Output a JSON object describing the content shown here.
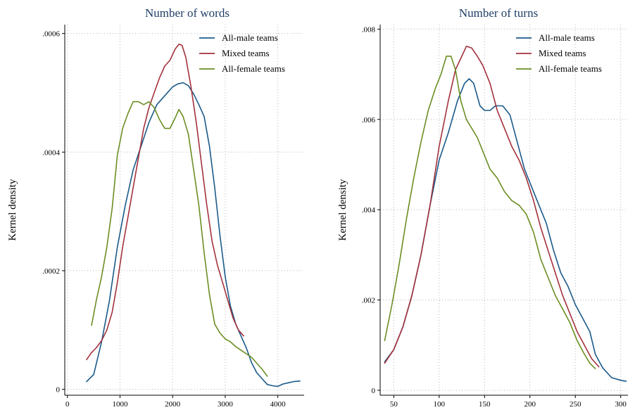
{
  "chart_data": [
    {
      "type": "line",
      "title": "Number of words",
      "xlabel": "",
      "ylabel": "Kernel density",
      "xlim": [
        -50,
        4500
      ],
      "ylim": [
        -1e-05,
        0.000615
      ],
      "x_ticks": [
        0,
        1000,
        2000,
        3000,
        4000
      ],
      "x_tick_labels": [
        "0",
        "1000",
        "2000",
        "3000",
        "4000"
      ],
      "y_ticks": [
        0,
        0.0002,
        0.0004,
        0.0006
      ],
      "y_tick_labels": [
        "0",
        ".0002",
        ".0004",
        ".0006"
      ],
      "grid": true,
      "legend_position": "top-right",
      "series": [
        {
          "name": "All-male teams",
          "color": "#1b5a8a",
          "points": [
            [
              365,
              1.3e-05
            ],
            [
              500,
              2.5e-05
            ],
            [
              650,
              8e-05
            ],
            [
              800,
              0.00015
            ],
            [
              950,
              0.00024
            ],
            [
              1100,
              0.00031
            ],
            [
              1250,
              0.00037
            ],
            [
              1400,
              0.00041
            ],
            [
              1550,
              0.00045
            ],
            [
              1700,
              0.00048
            ],
            [
              1850,
              0.000495
            ],
            [
              2000,
              0.00051
            ],
            [
              2100,
              0.000515
            ],
            [
              2200,
              0.000517
            ],
            [
              2300,
              0.000512
            ],
            [
              2400,
              0.000498
            ],
            [
              2500,
              0.00048
            ],
            [
              2600,
              0.00046
            ],
            [
              2700,
              0.00041
            ],
            [
              2800,
              0.00034
            ],
            [
              2900,
              0.00026
            ],
            [
              3000,
              0.00019
            ],
            [
              3100,
              0.00014
            ],
            [
              3200,
              0.00011
            ],
            [
              3300,
              9e-05
            ],
            [
              3400,
              7e-05
            ],
            [
              3500,
              4.5e-05
            ],
            [
              3600,
              2.8e-05
            ],
            [
              3700,
              1.8e-05
            ],
            [
              3800,
              8e-06
            ],
            [
              3900,
              6e-06
            ],
            [
              4000,
              5e-06
            ],
            [
              4100,
              9e-06
            ],
            [
              4200,
              1.1e-05
            ],
            [
              4300,
              1.3e-05
            ],
            [
              4420,
              1.4e-05
            ]
          ]
        },
        {
          "name": "Mixed teams",
          "color": "#a3313c",
          "points": [
            [
              365,
              5e-05
            ],
            [
              450,
              6.1e-05
            ],
            [
              550,
              7e-05
            ],
            [
              650,
              8.2e-05
            ],
            [
              750,
              0.0001
            ],
            [
              850,
              0.00013
            ],
            [
              950,
              0.00018
            ],
            [
              1050,
              0.00024
            ],
            [
              1150,
              0.00029
            ],
            [
              1250,
              0.00034
            ],
            [
              1350,
              0.00039
            ],
            [
              1450,
              0.00044
            ],
            [
              1550,
              0.000475
            ],
            [
              1650,
              0.0005
            ],
            [
              1750,
              0.000525
            ],
            [
              1850,
              0.000545
            ],
            [
              1950,
              0.000555
            ],
            [
              2050,
              0.000574
            ],
            [
              2120,
              0.000582
            ],
            [
              2180,
              0.00058
            ],
            [
              2250,
              0.00056
            ],
            [
              2350,
              0.00051
            ],
            [
              2450,
              0.00045
            ],
            [
              2550,
              0.00038
            ],
            [
              2650,
              0.00031
            ],
            [
              2750,
              0.00025
            ],
            [
              2850,
              0.00021
            ],
            [
              2950,
              0.00018
            ],
            [
              3050,
              0.00015
            ],
            [
              3150,
              0.00012
            ],
            [
              3250,
              0.0001
            ],
            [
              3350,
              9e-05
            ]
          ]
        },
        {
          "name": "All-female teams",
          "color": "#6b8e23",
          "points": [
            [
              460,
              0.000108
            ],
            [
              550,
              0.00015
            ],
            [
              650,
              0.00019
            ],
            [
              750,
              0.00024
            ],
            [
              850,
              0.000305
            ],
            [
              950,
              0.000395
            ],
            [
              1050,
              0.00044
            ],
            [
              1150,
              0.000465
            ],
            [
              1250,
              0.000485
            ],
            [
              1350,
              0.000485
            ],
            [
              1450,
              0.00048
            ],
            [
              1550,
              0.000485
            ],
            [
              1650,
              0.000475
            ],
            [
              1750,
              0.000455
            ],
            [
              1850,
              0.00044
            ],
            [
              1950,
              0.00044
            ],
            [
              2050,
              0.000458
            ],
            [
              2120,
              0.000472
            ],
            [
              2200,
              0.00046
            ],
            [
              2300,
              0.00043
            ],
            [
              2400,
              0.00037
            ],
            [
              2500,
              0.00031
            ],
            [
              2600,
              0.00023
            ],
            [
              2700,
              0.00016
            ],
            [
              2800,
              0.00011
            ],
            [
              2900,
              9.5e-05
            ],
            [
              3000,
              8.5e-05
            ],
            [
              3100,
              8e-05
            ],
            [
              3200,
              7.2e-05
            ],
            [
              3300,
              6.6e-05
            ],
            [
              3400,
              6e-05
            ],
            [
              3500,
              5.4e-05
            ],
            [
              3600,
              4.4e-05
            ],
            [
              3700,
              3.4e-05
            ],
            [
              3800,
              2.2e-05
            ]
          ]
        }
      ]
    },
    {
      "type": "line",
      "title": "Number of turns",
      "xlabel": "",
      "ylabel": "Kernel density",
      "xlim": [
        35,
        308
      ],
      "ylim": [
        -0.00011,
        0.0081
      ],
      "x_ticks": [
        50,
        100,
        150,
        200,
        250,
        300
      ],
      "x_tick_labels": [
        "50",
        "100",
        "150",
        "200",
        "250",
        "300"
      ],
      "y_ticks": [
        0,
        0.002,
        0.004,
        0.006,
        0.008
      ],
      "y_tick_labels": [
        "0",
        ".002",
        ".004",
        ".006",
        ".008"
      ],
      "grid": true,
      "legend_position": "top-right",
      "series": [
        {
          "name": "All-male teams",
          "color": "#1b5a8a",
          "points": [
            [
              40,
              0.00063
            ],
            [
              50,
              0.0009
            ],
            [
              60,
              0.0014
            ],
            [
              70,
              0.0021
            ],
            [
              80,
              0.003
            ],
            [
              90,
              0.0041
            ],
            [
              100,
              0.0051
            ],
            [
              110,
              0.0057
            ],
            [
              120,
              0.0064
            ],
            [
              128,
              0.0068
            ],
            [
              133,
              0.0069
            ],
            [
              138,
              0.0068
            ],
            [
              145,
              0.0063
            ],
            [
              150,
              0.0062
            ],
            [
              156,
              0.0062
            ],
            [
              162,
              0.0063
            ],
            [
              170,
              0.0063
            ],
            [
              178,
              0.0061
            ],
            [
              186,
              0.0055
            ],
            [
              194,
              0.0049
            ],
            [
              202,
              0.0045
            ],
            [
              210,
              0.0041
            ],
            [
              218,
              0.0037
            ],
            [
              226,
              0.0031
            ],
            [
              234,
              0.0026
            ],
            [
              242,
              0.0023
            ],
            [
              250,
              0.0019
            ],
            [
              258,
              0.0016
            ],
            [
              266,
              0.0013
            ],
            [
              272,
              0.0008
            ],
            [
              280,
              0.0005
            ],
            [
              290,
              0.00028
            ],
            [
              300,
              0.00022
            ],
            [
              306,
              0.0002
            ]
          ]
        },
        {
          "name": "Mixed teams",
          "color": "#a3313c",
          "points": [
            [
              40,
              0.0006
            ],
            [
              50,
              0.0009
            ],
            [
              60,
              0.0014
            ],
            [
              70,
              0.0021
            ],
            [
              80,
              0.003
            ],
            [
              90,
              0.0041
            ],
            [
              100,
              0.0054
            ],
            [
              110,
              0.0064
            ],
            [
              118,
              0.0071
            ],
            [
              125,
              0.0074
            ],
            [
              130,
              0.00762
            ],
            [
              136,
              0.00758
            ],
            [
              142,
              0.0074
            ],
            [
              148,
              0.0072
            ],
            [
              156,
              0.0068
            ],
            [
              164,
              0.0062
            ],
            [
              172,
              0.0058
            ],
            [
              180,
              0.0054
            ],
            [
              188,
              0.0051
            ],
            [
              196,
              0.0047
            ],
            [
              204,
              0.0042
            ],
            [
              212,
              0.0036
            ],
            [
              220,
              0.0031
            ],
            [
              228,
              0.0026
            ],
            [
              236,
              0.0021
            ],
            [
              244,
              0.0017
            ],
            [
              252,
              0.0013
            ],
            [
              260,
              0.001
            ],
            [
              268,
              0.0007
            ],
            [
              276,
              0.00052
            ]
          ]
        },
        {
          "name": "All-female teams",
          "color": "#6b8e23",
          "points": [
            [
              40,
              0.0011
            ],
            [
              48,
              0.0019
            ],
            [
              56,
              0.0028
            ],
            [
              64,
              0.0038
            ],
            [
              72,
              0.0047
            ],
            [
              80,
              0.0055
            ],
            [
              88,
              0.0062
            ],
            [
              96,
              0.0067
            ],
            [
              102,
              0.007
            ],
            [
              108,
              0.0074
            ],
            [
              113,
              0.0074
            ],
            [
              118,
              0.0071
            ],
            [
              124,
              0.0064
            ],
            [
              130,
              0.006
            ],
            [
              136,
              0.0058
            ],
            [
              142,
              0.0056
            ],
            [
              148,
              0.0053
            ],
            [
              156,
              0.0049
            ],
            [
              164,
              0.0047
            ],
            [
              172,
              0.0044
            ],
            [
              180,
              0.0042
            ],
            [
              188,
              0.0041
            ],
            [
              196,
              0.0039
            ],
            [
              204,
              0.0035
            ],
            [
              212,
              0.0029
            ],
            [
              220,
              0.0025
            ],
            [
              228,
              0.0021
            ],
            [
              236,
              0.0018
            ],
            [
              244,
              0.0015
            ],
            [
              252,
              0.0011
            ],
            [
              260,
              0.0008
            ],
            [
              266,
              0.0006
            ],
            [
              272,
              0.00048
            ]
          ]
        }
      ]
    }
  ]
}
